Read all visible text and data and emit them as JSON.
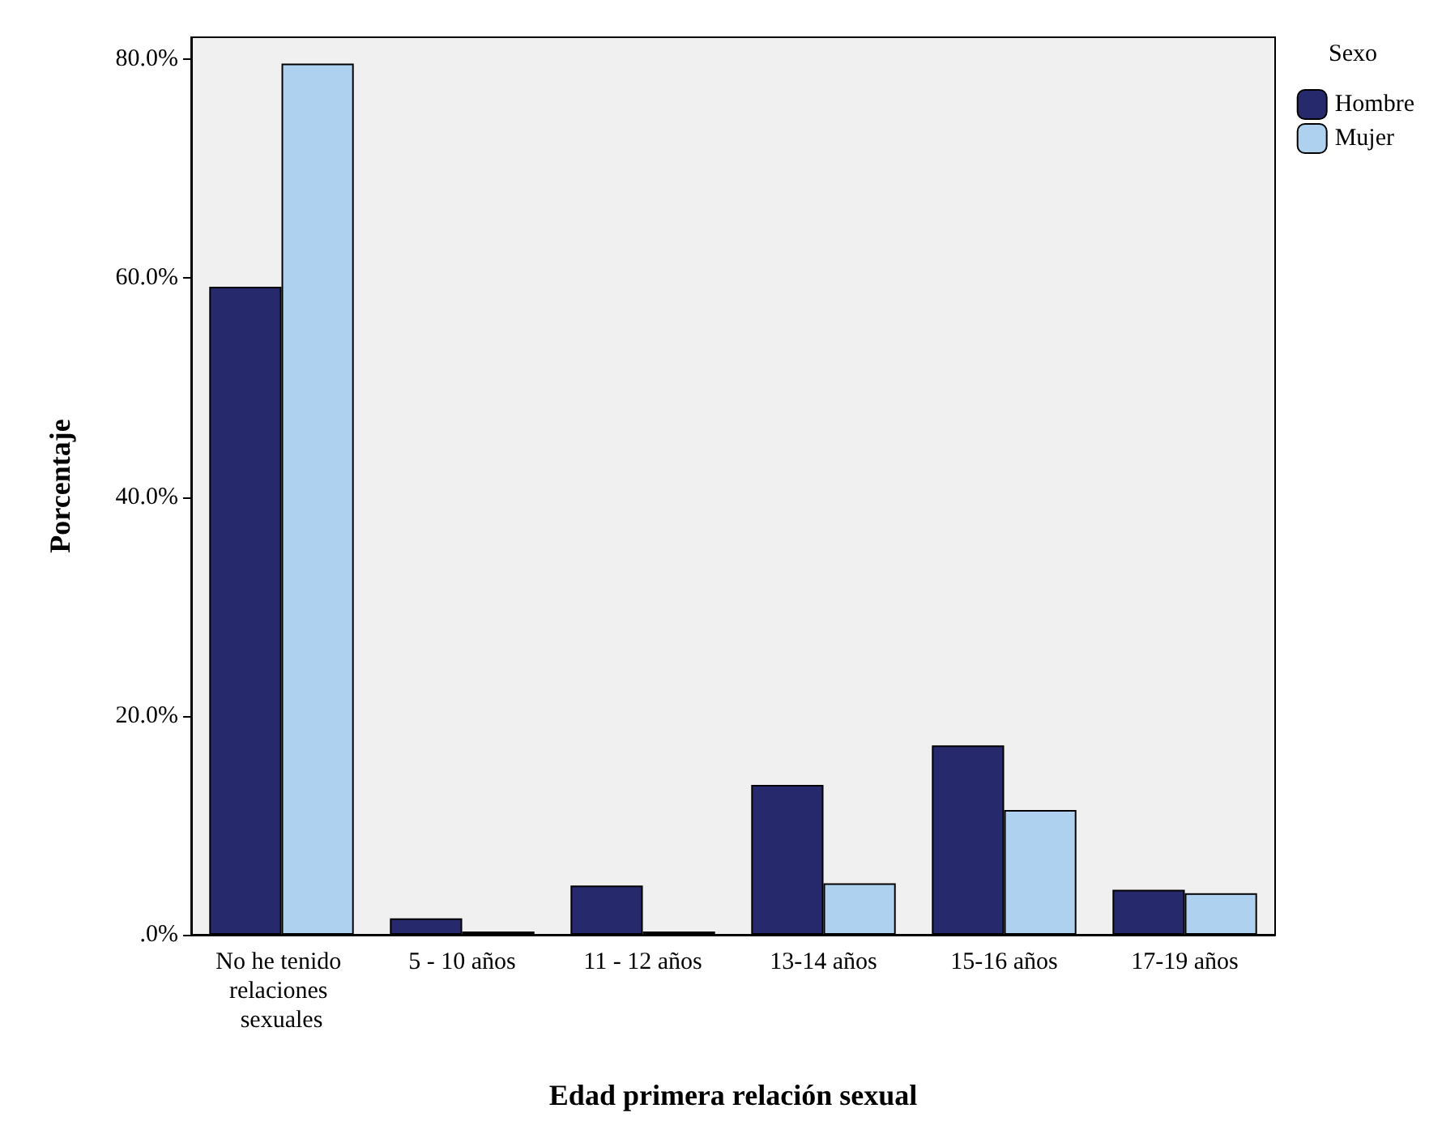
{
  "chart_data": {
    "type": "bar",
    "xlabel": "Edad primera relación sexual",
    "ylabel": "Porcentaje",
    "legend_title": "Sexo",
    "legend": "top right",
    "grid": false,
    "categories": [
      "No he tenido relaciones sexuales",
      "5 - 10 años",
      "11 - 12 años",
      "13-14 años",
      "15-16 años",
      "17-19 años"
    ],
    "series": [
      {
        "name": "Hombre",
        "color": "#262a6c",
        "values": [
          59.2,
          1.5,
          4.5,
          13.7,
          17.3,
          4.1
        ]
      },
      {
        "name": "Mujer",
        "color": "#aed1ef",
        "values": [
          79.6,
          0.3,
          0.3,
          4.7,
          11.4,
          3.8
        ]
      }
    ],
    "ylim": [
      0,
      82
    ],
    "yticks": [
      {
        "value": 0,
        "label": ".0%"
      },
      {
        "value": 20,
        "label": "20.0%"
      },
      {
        "value": 40,
        "label": "40.0%"
      },
      {
        "value": 60,
        "label": "60.0%"
      },
      {
        "value": 80,
        "label": "80.0%"
      }
    ]
  }
}
